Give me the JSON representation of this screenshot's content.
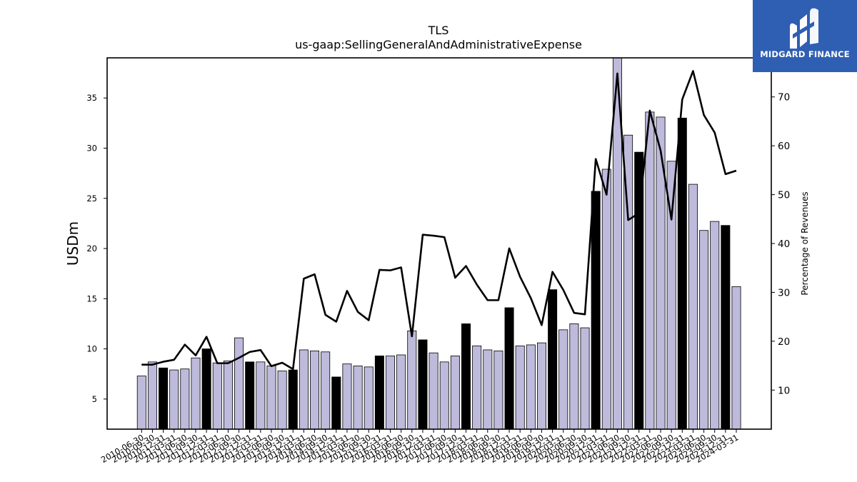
{
  "chart_data": {
    "type": "bar",
    "title": "TLS",
    "subtitle": "us-gaap:SellingGeneralAndAdministrativeExpense",
    "ylabel": "USDm",
    "y2label": "Percentage of Revenues",
    "ylim": [
      2.0,
      39.0
    ],
    "y2lim": [
      2.0,
      78.0
    ],
    "yticks": [
      5,
      10,
      15,
      20,
      25,
      30,
      35
    ],
    "y2ticks": [
      10,
      20,
      30,
      40,
      50,
      60,
      70
    ],
    "grid": false,
    "legend": "none",
    "colors": {
      "bar": "#bebadb",
      "bar_q4": "#000000",
      "line": "#000000",
      "logo_bg": "#2f5fb3"
    },
    "categories": [
      "2010-06-30",
      "2010-09-30",
      "2010-12-31",
      "2011-03-31",
      "2011-06-30",
      "2011-09-30",
      "2011-12-31",
      "2012-03-31",
      "2012-06-30",
      "2012-09-30",
      "2012-12-31",
      "2013-03-31",
      "2013-06-30",
      "2013-09-30",
      "2013-12-31",
      "2014-03-31",
      "2014-06-30",
      "2014-09-30",
      "2014-12-31",
      "2015-03-31",
      "2015-06-30",
      "2015-09-30",
      "2015-12-31",
      "2016-03-31",
      "2016-06-30",
      "2016-09-30",
      "2016-12-31",
      "2017-03-31",
      "2017-06-30",
      "2017-09-30",
      "2017-12-31",
      "2018-03-31",
      "2018-06-30",
      "2018-09-30",
      "2018-12-31",
      "2019-03-31",
      "2019-06-30",
      "2019-09-30",
      "2019-12-31",
      "2020-03-31",
      "2020-06-30",
      "2020-09-30",
      "2020-12-31",
      "2021-03-31",
      "2021-06-30",
      "2021-09-30",
      "2021-12-31",
      "2022-03-31",
      "2022-06-30",
      "2022-09-30",
      "2022-12-31",
      "2023-03-31",
      "2023-06-30",
      "2023-09-30",
      "2023-12-31",
      "2024-03-31"
    ],
    "series": [
      {
        "type": "bar",
        "axis": "left",
        "values": [
          7.3,
          8.7,
          8.1,
          7.9,
          8.0,
          9.1,
          10.0,
          8.6,
          8.8,
          11.1,
          8.7,
          8.7,
          8.3,
          7.8,
          7.9,
          9.9,
          9.8,
          9.7,
          7.2,
          8.5,
          8.3,
          8.2,
          9.3,
          9.3,
          9.4,
          11.8,
          10.9,
          9.6,
          8.7,
          9.3,
          12.5,
          10.3,
          9.9,
          9.8,
          14.1,
          10.3,
          10.4,
          10.6,
          15.9,
          11.9,
          12.5,
          12.1,
          25.7,
          27.9,
          39.0,
          31.3,
          29.6,
          33.6,
          33.1,
          28.7,
          33.0,
          26.4,
          21.8,
          22.7,
          22.3,
          16.2
        ],
        "highlight": [
          2,
          6,
          10,
          14,
          18,
          22,
          26,
          30,
          34,
          38,
          42,
          46,
          50,
          54
        ]
      },
      {
        "type": "line",
        "axis": "right",
        "values": [
          15.2,
          15.2,
          15.8,
          16.2,
          19.3,
          17.1,
          20.9,
          15.5,
          15.5,
          16.6,
          17.8,
          18.2,
          14.9,
          15.6,
          14.3,
          32.8,
          33.7,
          25.4,
          24.0,
          30.3,
          26.0,
          24.3,
          34.6,
          34.5,
          35.1,
          21.0,
          41.8,
          41.6,
          41.3,
          33.0,
          35.4,
          31.6,
          28.4,
          28.4,
          39.0,
          33.2,
          28.8,
          23.3,
          34.2,
          30.5,
          25.8,
          25.5,
          57.3,
          50.0,
          74.8,
          44.8,
          46.2,
          67.2,
          59.0,
          44.9,
          69.5,
          75.3,
          66.3,
          62.7,
          54.2,
          54.9
        ]
      }
    ]
  },
  "logo": {
    "text": "MIDGARD FINANCE",
    "icon": "midgard-logo-icon"
  }
}
